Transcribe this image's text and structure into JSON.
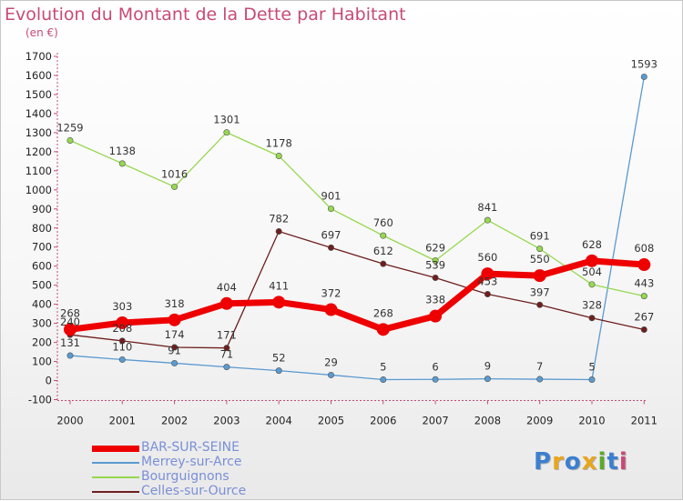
{
  "header": {
    "title": "Evolution du Montant de la Dette par Habitant",
    "unit": "(en €)"
  },
  "logo": {
    "text": "Proxiti",
    "colors": [
      "#3b7fd0",
      "#e8a51e",
      "#3b7fd0",
      "#e8a51e",
      "#5aaa2a",
      "#3b7fd0",
      "#c84a76"
    ]
  },
  "chart_data": {
    "type": "line",
    "title": "Evolution du Montant de la Dette par Habitant",
    "ylabel": "(en €)",
    "xlabel": "",
    "x": [
      "2000",
      "2001",
      "2002",
      "2003",
      "2004",
      "2005",
      "2006",
      "2007",
      "2008",
      "2009",
      "2010",
      "2011"
    ],
    "ylim": [
      -100,
      1700
    ],
    "yticks": [
      -100,
      0,
      100,
      200,
      300,
      400,
      500,
      600,
      700,
      800,
      900,
      1000,
      1100,
      1200,
      1300,
      1400,
      1500,
      1600,
      1700
    ],
    "grid": false,
    "legend_position": "bottom-left",
    "series": [
      {
        "name": "BAR-SUR-SEINE",
        "color": "#ee0000",
        "values": [
          268,
          303,
          318,
          404,
          411,
          372,
          268,
          338,
          560,
          550,
          628,
          608
        ]
      },
      {
        "name": "Merrey-sur-Arce",
        "color": "#5a9ad0",
        "values": [
          131,
          110,
          91,
          71,
          52,
          29,
          5,
          6,
          9,
          7,
          5,
          1593
        ]
      },
      {
        "name": "Bourguignons",
        "color": "#96d84e",
        "values": [
          1259,
          1138,
          1016,
          1301,
          1178,
          901,
          760,
          629,
          841,
          691,
          504,
          443
        ]
      },
      {
        "name": "Celles-sur-Ource",
        "color": "#6e1e1e",
        "values": [
          240,
          208,
          174,
          171,
          782,
          697,
          612,
          539,
          453,
          397,
          328,
          267
        ]
      }
    ]
  }
}
